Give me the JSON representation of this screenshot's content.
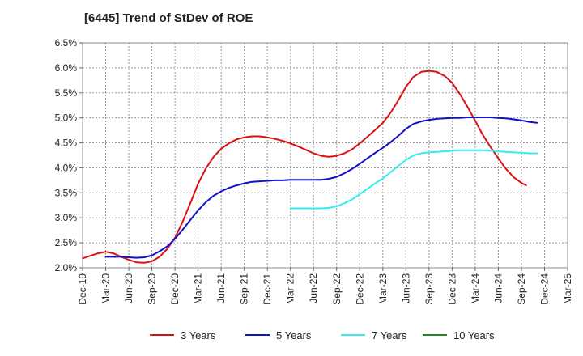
{
  "chart_data": {
    "type": "line",
    "title": "[6445]  Trend of StDev of ROE",
    "xlabel": "",
    "ylabel": "",
    "ylim": [
      0.02,
      0.065
    ],
    "y_ticks": [
      0.02,
      0.025,
      0.03,
      0.035,
      0.04,
      0.045,
      0.05,
      0.055,
      0.06,
      0.065
    ],
    "y_tick_labels": [
      "2.0%",
      "2.5%",
      "3.0%",
      "3.5%",
      "4.0%",
      "4.5%",
      "5.0%",
      "5.5%",
      "6.0%",
      "6.5%"
    ],
    "categories": [
      "Dec-19",
      "Mar-20",
      "Jun-20",
      "Sep-20",
      "Dec-20",
      "Mar-21",
      "Jun-21",
      "Sep-21",
      "Dec-21",
      "Mar-22",
      "Jun-22",
      "Sep-22",
      "Dec-22",
      "Mar-23",
      "Jun-23",
      "Sep-23",
      "Dec-23",
      "Mar-24",
      "Jun-24",
      "Sep-24",
      "Dec-24",
      "Mar-25"
    ],
    "grid": true,
    "legend_position": "bottom",
    "series": [
      {
        "name": "3 Years",
        "color": "#dd1111",
        "points": [
          [
            0,
            0.0219
          ],
          [
            0.33,
            0.0224
          ],
          [
            0.67,
            0.0229
          ],
          [
            1.0,
            0.0232
          ],
          [
            1.33,
            0.0229
          ],
          [
            1.67,
            0.0222
          ],
          [
            2.0,
            0.0216
          ],
          [
            2.33,
            0.0211
          ],
          [
            2.67,
            0.021
          ],
          [
            3.0,
            0.0213
          ],
          [
            3.33,
            0.0222
          ],
          [
            3.67,
            0.0238
          ],
          [
            4.0,
            0.026
          ],
          [
            4.33,
            0.0292
          ],
          [
            4.67,
            0.033
          ],
          [
            5.0,
            0.0368
          ],
          [
            5.33,
            0.0398
          ],
          [
            5.67,
            0.0422
          ],
          [
            6.0,
            0.0438
          ],
          [
            6.33,
            0.0449
          ],
          [
            6.67,
            0.0457
          ],
          [
            7.0,
            0.0461
          ],
          [
            7.33,
            0.0463
          ],
          [
            7.67,
            0.0463
          ],
          [
            8.0,
            0.0461
          ],
          [
            8.33,
            0.0458
          ],
          [
            8.67,
            0.0454
          ],
          [
            9.0,
            0.0449
          ],
          [
            9.33,
            0.0443
          ],
          [
            9.67,
            0.0436
          ],
          [
            10.0,
            0.0429
          ],
          [
            10.33,
            0.0424
          ],
          [
            10.67,
            0.0422
          ],
          [
            11.0,
            0.0424
          ],
          [
            11.33,
            0.0429
          ],
          [
            11.67,
            0.0437
          ],
          [
            12.0,
            0.0449
          ],
          [
            12.33,
            0.0462
          ],
          [
            12.67,
            0.0476
          ],
          [
            13.0,
            0.049
          ],
          [
            13.33,
            0.051
          ],
          [
            13.67,
            0.0535
          ],
          [
            14.0,
            0.0562
          ],
          [
            14.33,
            0.0582
          ],
          [
            14.67,
            0.0592
          ],
          [
            15.0,
            0.0594
          ],
          [
            15.33,
            0.0592
          ],
          [
            15.67,
            0.0584
          ],
          [
            16.0,
            0.057
          ],
          [
            16.33,
            0.0548
          ],
          [
            16.67,
            0.0522
          ],
          [
            17.0,
            0.0494
          ],
          [
            17.33,
            0.0466
          ],
          [
            17.67,
            0.0441
          ],
          [
            18.0,
            0.0419
          ],
          [
            18.33,
            0.0398
          ],
          [
            18.67,
            0.0381
          ],
          [
            19.0,
            0.037
          ],
          [
            19.2,
            0.0365
          ]
        ]
      },
      {
        "name": "5 Years",
        "color": "#1111cc",
        "points": [
          [
            1.0,
            0.0222
          ],
          [
            1.33,
            0.0222
          ],
          [
            1.67,
            0.0222
          ],
          [
            2.0,
            0.0221
          ],
          [
            2.33,
            0.022
          ],
          [
            2.67,
            0.0221
          ],
          [
            3.0,
            0.0225
          ],
          [
            3.33,
            0.0233
          ],
          [
            3.67,
            0.0243
          ],
          [
            4.0,
            0.0258
          ],
          [
            4.33,
            0.0276
          ],
          [
            4.67,
            0.0296
          ],
          [
            5.0,
            0.0315
          ],
          [
            5.33,
            0.0331
          ],
          [
            5.67,
            0.0344
          ],
          [
            6.0,
            0.0353
          ],
          [
            6.33,
            0.036
          ],
          [
            6.67,
            0.0365
          ],
          [
            7.0,
            0.0369
          ],
          [
            7.33,
            0.0372
          ],
          [
            7.67,
            0.0373
          ],
          [
            8.0,
            0.0374
          ],
          [
            8.33,
            0.0375
          ],
          [
            8.67,
            0.0375
          ],
          [
            9.0,
            0.0376
          ],
          [
            9.33,
            0.0376
          ],
          [
            9.67,
            0.0376
          ],
          [
            10.0,
            0.0376
          ],
          [
            10.33,
            0.0376
          ],
          [
            10.67,
            0.0378
          ],
          [
            11.0,
            0.0382
          ],
          [
            11.33,
            0.0389
          ],
          [
            11.67,
            0.0398
          ],
          [
            12.0,
            0.0408
          ],
          [
            12.33,
            0.0419
          ],
          [
            12.67,
            0.043
          ],
          [
            13.0,
            0.044
          ],
          [
            13.33,
            0.0451
          ],
          [
            13.67,
            0.0464
          ],
          [
            14.0,
            0.0478
          ],
          [
            14.33,
            0.0488
          ],
          [
            14.67,
            0.0493
          ],
          [
            15.0,
            0.0496
          ],
          [
            15.33,
            0.0498
          ],
          [
            15.67,
            0.0499
          ],
          [
            16.0,
            0.05
          ],
          [
            16.33,
            0.05
          ],
          [
            16.67,
            0.0501
          ],
          [
            17.0,
            0.0501
          ],
          [
            17.33,
            0.0501
          ],
          [
            17.67,
            0.0501
          ],
          [
            18.0,
            0.05
          ],
          [
            18.33,
            0.0499
          ],
          [
            18.67,
            0.0497
          ],
          [
            19.0,
            0.0495
          ],
          [
            19.33,
            0.0492
          ],
          [
            19.67,
            0.049
          ]
        ]
      },
      {
        "name": "7 Years",
        "color": "#33eeee",
        "points": [
          [
            9.0,
            0.0319
          ],
          [
            9.33,
            0.0319
          ],
          [
            9.67,
            0.0319
          ],
          [
            10.0,
            0.0319
          ],
          [
            10.33,
            0.0319
          ],
          [
            10.67,
            0.032
          ],
          [
            11.0,
            0.0323
          ],
          [
            11.33,
            0.0329
          ],
          [
            11.67,
            0.0337
          ],
          [
            12.0,
            0.0347
          ],
          [
            12.33,
            0.0358
          ],
          [
            12.67,
            0.0369
          ],
          [
            13.0,
            0.0379
          ],
          [
            13.33,
            0.0391
          ],
          [
            13.67,
            0.0404
          ],
          [
            14.0,
            0.0416
          ],
          [
            14.33,
            0.0425
          ],
          [
            14.67,
            0.0429
          ],
          [
            15.0,
            0.0431
          ],
          [
            15.33,
            0.0432
          ],
          [
            15.67,
            0.0433
          ],
          [
            16.0,
            0.0434
          ],
          [
            16.33,
            0.0435
          ],
          [
            16.67,
            0.0435
          ],
          [
            17.0,
            0.0435
          ],
          [
            17.33,
            0.0435
          ],
          [
            17.67,
            0.0434
          ],
          [
            18.0,
            0.0433
          ],
          [
            18.33,
            0.0432
          ],
          [
            18.67,
            0.0431
          ],
          [
            19.0,
            0.043
          ],
          [
            19.33,
            0.0429
          ],
          [
            19.67,
            0.0429
          ]
        ]
      },
      {
        "name": "10 Years",
        "color": "#228822",
        "points": []
      }
    ]
  }
}
